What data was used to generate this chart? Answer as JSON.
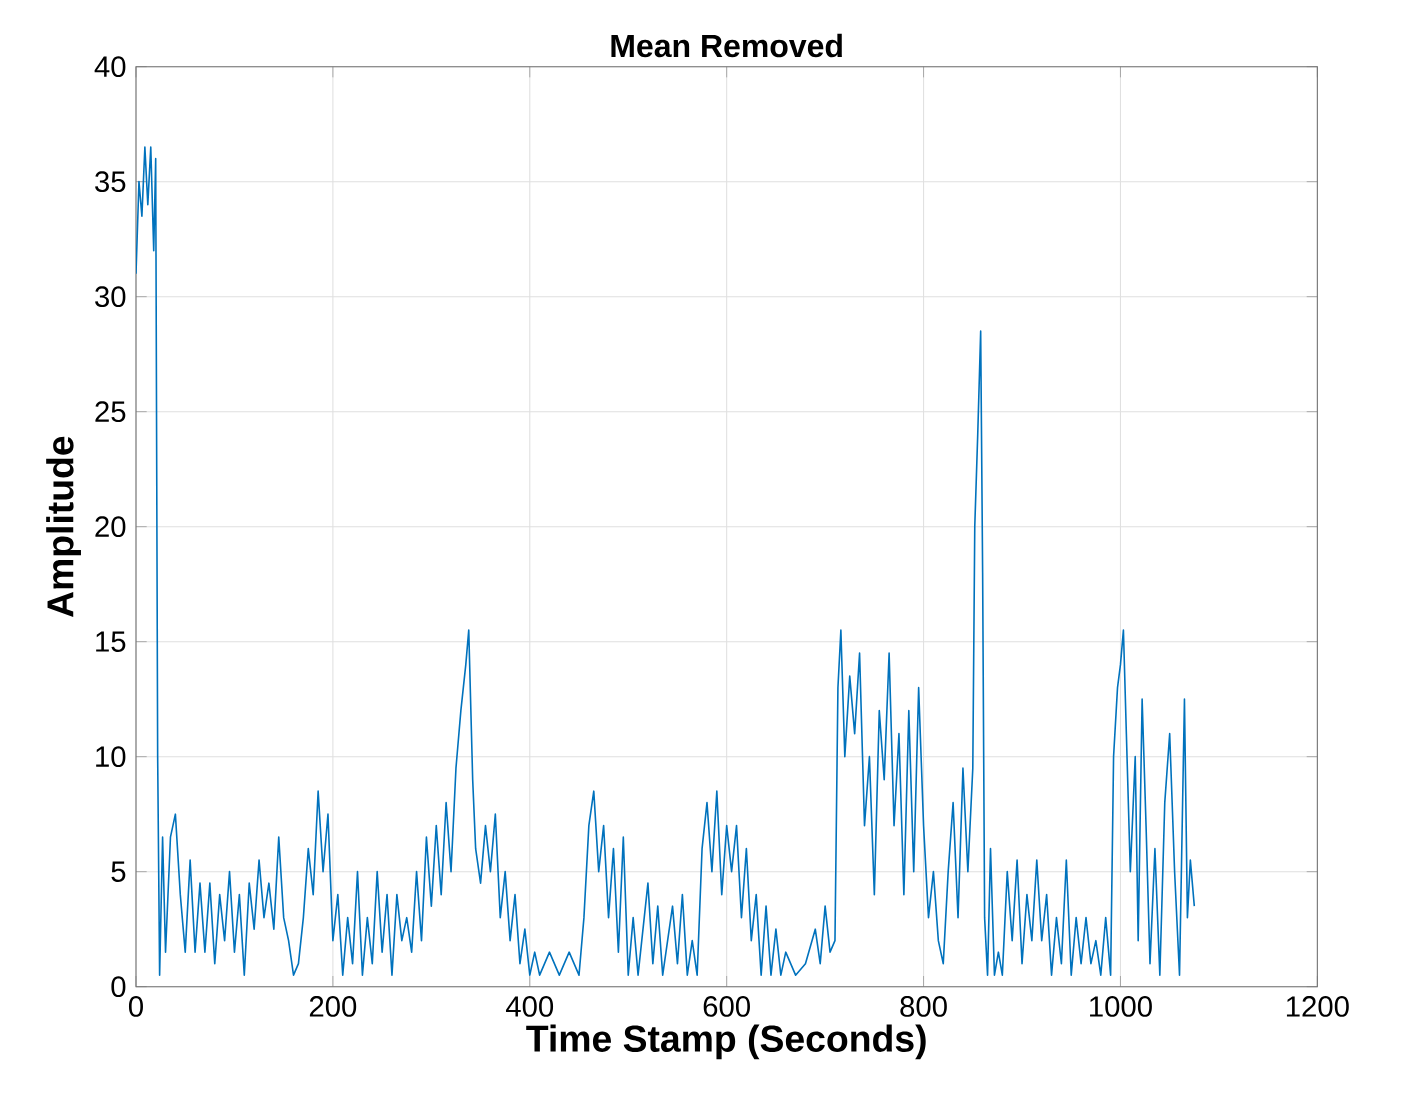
{
  "chart_data": {
    "type": "line",
    "title": "Mean Removed",
    "xlabel": "Time Stamp (Seconds)",
    "ylabel": "Amplitude",
    "xlim": [
      0,
      1200
    ],
    "ylim": [
      0,
      40
    ],
    "xticks": [
      0,
      200,
      400,
      600,
      800,
      1000,
      1200
    ],
    "yticks": [
      0,
      5,
      10,
      15,
      20,
      25,
      30,
      35,
      40
    ],
    "grid": true,
    "series": [
      {
        "color": "#0072bd",
        "x": [
          0,
          3,
          6,
          9,
          12,
          15,
          18,
          20,
          22,
          24,
          27,
          30,
          35,
          40,
          45,
          50,
          55,
          60,
          65,
          70,
          75,
          80,
          85,
          90,
          95,
          100,
          105,
          110,
          115,
          120,
          125,
          130,
          135,
          140,
          145,
          150,
          155,
          160,
          165,
          170,
          175,
          180,
          185,
          190,
          195,
          200,
          205,
          210,
          215,
          220,
          225,
          230,
          235,
          240,
          245,
          250,
          255,
          260,
          265,
          270,
          275,
          280,
          285,
          290,
          295,
          300,
          305,
          310,
          315,
          320,
          325,
          330,
          335,
          338,
          342,
          345,
          350,
          355,
          360,
          365,
          370,
          375,
          380,
          385,
          390,
          395,
          400,
          405,
          410,
          420,
          430,
          440,
          450,
          455,
          460,
          465,
          470,
          475,
          480,
          485,
          490,
          495,
          500,
          505,
          510,
          520,
          525,
          530,
          535,
          545,
          550,
          555,
          560,
          565,
          570,
          575,
          580,
          585,
          590,
          595,
          600,
          605,
          610,
          615,
          620,
          625,
          630,
          635,
          640,
          645,
          650,
          655,
          660,
          670,
          680,
          690,
          695,
          700,
          705,
          710,
          713,
          716,
          720,
          725,
          730,
          735,
          740,
          745,
          750,
          755,
          760,
          765,
          770,
          775,
          780,
          785,
          790,
          795,
          800,
          805,
          810,
          815,
          820,
          825,
          830,
          835,
          840,
          845,
          850,
          852,
          855,
          858,
          860,
          862,
          865,
          868,
          872,
          876,
          880,
          885,
          890,
          895,
          900,
          905,
          910,
          915,
          920,
          925,
          930,
          935,
          940,
          945,
          950,
          955,
          960,
          965,
          970,
          975,
          980,
          985,
          990,
          993,
          997,
          1000,
          1003,
          1006,
          1010,
          1015,
          1018,
          1022,
          1026,
          1030,
          1035,
          1040,
          1045,
          1050,
          1055,
          1060,
          1065,
          1068,
          1071,
          1075
        ],
        "values": [
          31,
          35,
          33.5,
          36.5,
          34,
          36.5,
          32,
          36,
          10,
          0.5,
          6.5,
          1.5,
          6.5,
          7.5,
          4,
          1.5,
          5.5,
          1.5,
          4.5,
          1.5,
          4.5,
          1,
          4,
          2,
          5,
          1.5,
          4,
          0.5,
          4.5,
          2.5,
          5.5,
          3,
          4.5,
          2.5,
          6.5,
          3,
          2,
          0.5,
          1,
          3,
          6,
          4,
          8.5,
          5,
          7.5,
          2,
          4,
          0.5,
          3,
          1,
          5,
          0.5,
          3,
          1,
          5,
          1.5,
          4,
          0.5,
          4,
          2,
          3,
          1.5,
          5,
          2,
          6.5,
          3.5,
          7,
          4,
          8,
          5,
          9.5,
          12,
          14,
          15.5,
          9,
          6,
          4.5,
          7,
          5,
          7.5,
          3,
          5,
          2,
          4,
          1,
          2.5,
          0.5,
          1.5,
          0.5,
          1.5,
          0.5,
          1.5,
          0.5,
          3,
          7,
          8.5,
          5,
          7,
          3,
          6,
          1.5,
          6.5,
          0.5,
          3,
          0.5,
          4.5,
          1,
          3.5,
          0.5,
          3.5,
          1,
          4,
          0.5,
          2,
          0.5,
          6,
          8,
          5,
          8.5,
          4,
          7,
          5,
          7,
          3,
          6,
          2,
          4,
          0.5,
          3.5,
          0.5,
          2.5,
          0.5,
          1.5,
          0.5,
          1,
          2.5,
          1,
          3.5,
          1.5,
          2,
          13,
          15.5,
          10,
          13.5,
          11,
          14.5,
          7,
          10,
          4,
          12,
          9,
          14.5,
          7,
          11,
          4,
          12,
          5,
          13,
          7,
          3,
          5,
          2,
          1,
          5,
          8,
          3,
          9.5,
          5,
          9.5,
          20,
          24,
          28.5,
          18,
          3,
          0.5,
          6,
          0.5,
          1.5,
          0.5,
          5,
          2,
          5.5,
          1,
          4,
          2,
          5.5,
          2,
          4,
          0.5,
          3,
          1,
          5.5,
          0.5,
          3,
          1,
          3,
          1,
          2,
          0.5,
          3,
          0.5,
          10,
          13,
          14,
          15.5,
          11,
          5,
          10,
          2,
          12.5,
          7,
          1,
          6,
          0.5,
          8,
          11,
          5,
          0.5,
          12.5,
          3,
          5.5,
          3.5
        ]
      }
    ]
  }
}
